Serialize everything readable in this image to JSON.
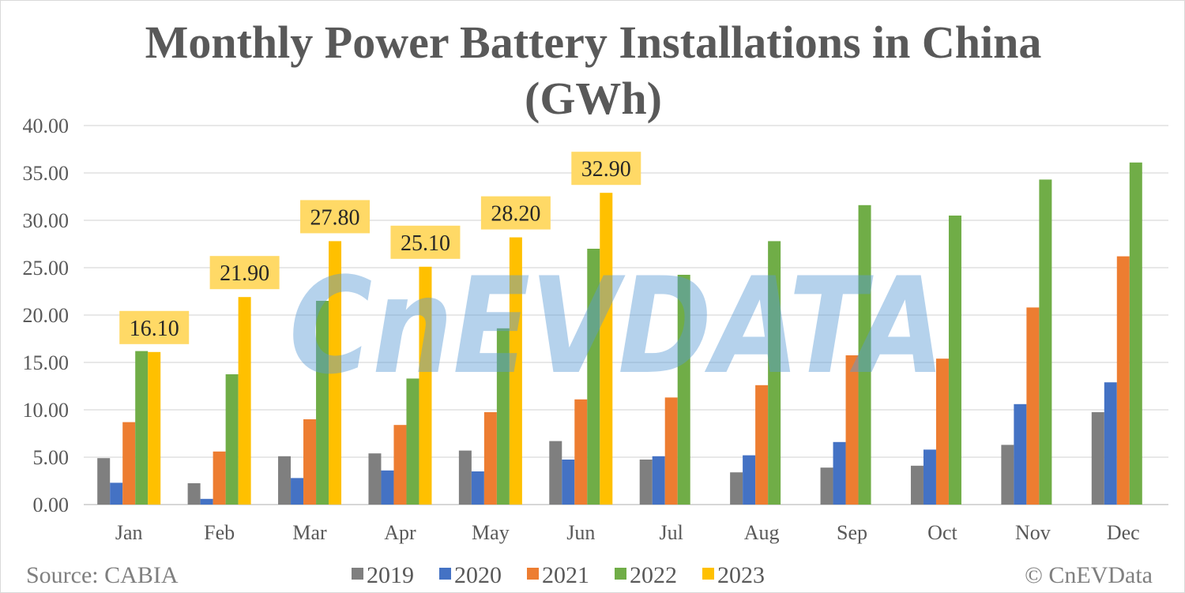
{
  "chart_data": {
    "type": "bar",
    "title": "Monthly Power Battery Installations in China",
    "subtitle": "(GWh)",
    "xlabel": "",
    "ylabel": "",
    "ylim": [
      0,
      40
    ],
    "yticks": [
      "0.00",
      "5.00",
      "10.00",
      "15.00",
      "20.00",
      "25.00",
      "30.00",
      "35.00",
      "40.00"
    ],
    "grid": true,
    "legend_position": "bottom",
    "categories": [
      "Jan",
      "Feb",
      "Mar",
      "Apr",
      "May",
      "Jun",
      "Jul",
      "Aug",
      "Sep",
      "Oct",
      "Nov",
      "Dec"
    ],
    "series": [
      {
        "name": "2019",
        "color": "#7F7F7F",
        "values": [
          4.9,
          2.25,
          5.1,
          5.4,
          5.7,
          6.7,
          4.75,
          3.4,
          3.9,
          4.1,
          6.3,
          9.75
        ]
      },
      {
        "name": "2020",
        "color": "#4472C4",
        "values": [
          2.3,
          0.6,
          2.8,
          3.6,
          3.5,
          4.75,
          5.1,
          5.2,
          6.6,
          5.8,
          10.6,
          12.9
        ]
      },
      {
        "name": "2021",
        "color": "#ED7D31",
        "values": [
          8.7,
          5.6,
          9.0,
          8.4,
          9.75,
          11.1,
          11.3,
          12.6,
          15.75,
          15.4,
          20.8,
          26.2
        ]
      },
      {
        "name": "2022",
        "color": "#70AD47",
        "values": [
          16.2,
          13.75,
          21.5,
          13.3,
          18.6,
          27.0,
          24.25,
          27.8,
          31.6,
          30.5,
          34.3,
          36.1
        ]
      },
      {
        "name": "2023",
        "color": "#FFC000",
        "values": [
          16.1,
          21.9,
          27.8,
          25.1,
          28.2,
          32.9,
          null,
          null,
          null,
          null,
          null,
          null
        ]
      }
    ],
    "data_labels": {
      "series": "2023",
      "labels": [
        "16.10",
        "21.90",
        "27.80",
        "25.10",
        "28.20",
        "32.90"
      ],
      "background": "#FFD966"
    }
  },
  "footer": {
    "source": "Source: CABIA",
    "copyright": "© CnEVData"
  },
  "watermark": "CnEVDATA"
}
